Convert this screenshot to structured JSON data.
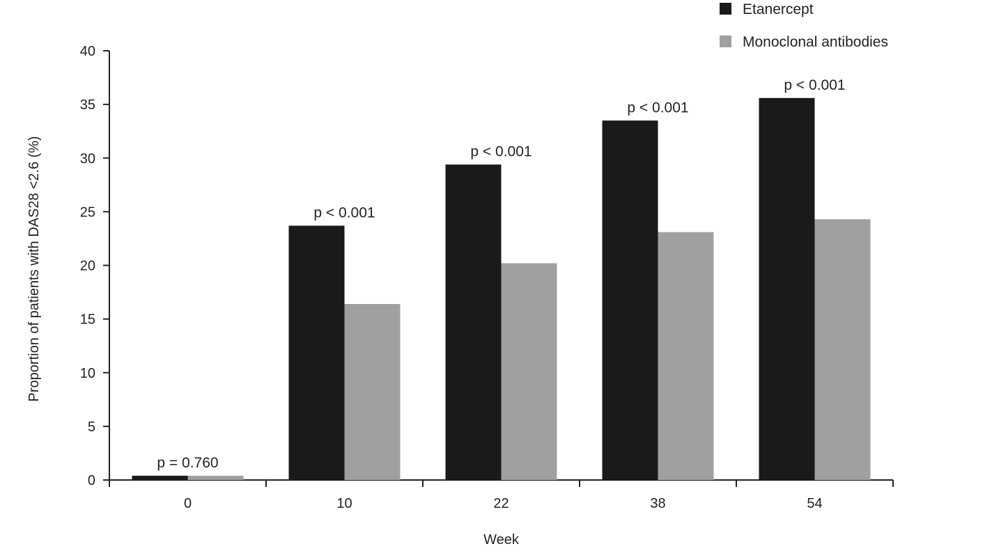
{
  "chart_data": {
    "type": "bar",
    "title": "",
    "xlabel": "Week",
    "ylabel": "Proportion of patients with DAS28 <2.6 (%)",
    "ylim": [
      0,
      40
    ],
    "yticks": [
      0,
      5,
      10,
      15,
      20,
      25,
      30,
      35,
      40
    ],
    "grid": false,
    "legend_position": "top-right",
    "categories": [
      "0",
      "10",
      "22",
      "38",
      "54"
    ],
    "series": [
      {
        "name": "Etanercept",
        "color": "#1a1a1a",
        "values": [
          0.4,
          23.7,
          29.4,
          33.5,
          35.6
        ]
      },
      {
        "name": "Monoclonal antibodies",
        "color": "#a0a0a0",
        "values": [
          0.4,
          16.4,
          20.2,
          23.1,
          24.3
        ]
      }
    ],
    "annotations": [
      "p = 0.760",
      "p < 0.001",
      "p < 0.001",
      "p < 0.001",
      "p < 0.001"
    ]
  }
}
